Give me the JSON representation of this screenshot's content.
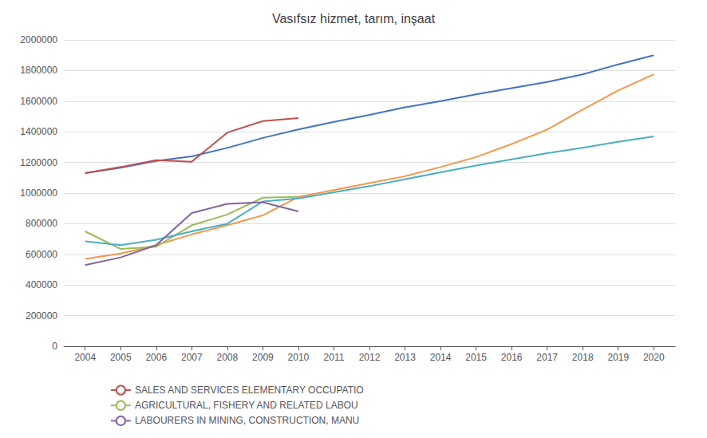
{
  "chart_data": {
    "type": "line",
    "title": "Vasıfsız hizmet, tarım, inşaat",
    "x": [
      2004,
      2005,
      2006,
      2007,
      2008,
      2009,
      2010,
      2011,
      2012,
      2013,
      2014,
      2015,
      2016,
      2017,
      2018,
      2019,
      2020
    ],
    "series": [
      {
        "color": "#4472C4",
        "values": [
          1130000,
          1165000,
          1210000,
          1240000,
          1295000,
          1360000,
          1415000,
          1465000,
          1510000,
          1560000,
          1600000,
          1645000,
          1685000,
          1725000,
          1775000,
          1840000,
          1900000
        ]
      },
      {
        "name": "SALES AND SERVICES ELEMENTARY OCCUPATIO",
        "color": "#C0504D",
        "values": [
          1130000,
          1170000,
          1215000,
          1205000,
          1395000,
          1470000,
          1490000,
          null,
          null,
          null,
          null,
          null,
          null,
          null,
          null,
          null,
          null
        ]
      },
      {
        "color": "#F79646",
        "values": [
          570000,
          605000,
          660000,
          730000,
          790000,
          855000,
          975000,
          1020000,
          1065000,
          1110000,
          1170000,
          1235000,
          1320000,
          1415000,
          1545000,
          1670000,
          1775000
        ]
      },
      {
        "name": "AGRICULTURAL, FISHERY AND RELATED LABOU",
        "color": "#9BBB59",
        "values": [
          750000,
          635000,
          650000,
          790000,
          860000,
          970000,
          975000,
          null,
          null,
          null,
          null,
          null,
          null,
          null,
          null,
          null,
          null
        ]
      },
      {
        "color": "#4BACC6",
        "values": [
          685000,
          660000,
          695000,
          750000,
          800000,
          945000,
          965000,
          1005000,
          1045000,
          1090000,
          1135000,
          1180000,
          1220000,
          1260000,
          1295000,
          1335000,
          1370000
        ]
      },
      {
        "name": "LABOURERS IN MINING, CONSTRUCTION, MANU",
        "color": "#8064A2",
        "values": [
          530000,
          580000,
          660000,
          870000,
          930000,
          940000,
          880000,
          null,
          null,
          null,
          null,
          null,
          null,
          null,
          null,
          null,
          null
        ]
      }
    ],
    "xlim": [
      2003.4,
      2020.6
    ],
    "xticks": [
      2004,
      2005,
      2006,
      2007,
      2008,
      2009,
      2010,
      2011,
      2012,
      2013,
      2014,
      2015,
      2016,
      2017,
      2018,
      2019,
      2020
    ],
    "ylim": [
      0,
      2000000
    ],
    "yticks": [
      0,
      200000,
      400000,
      600000,
      800000,
      1000000,
      1200000,
      1400000,
      1600000,
      1800000,
      2000000
    ],
    "grid": true,
    "legend": "bottom"
  }
}
